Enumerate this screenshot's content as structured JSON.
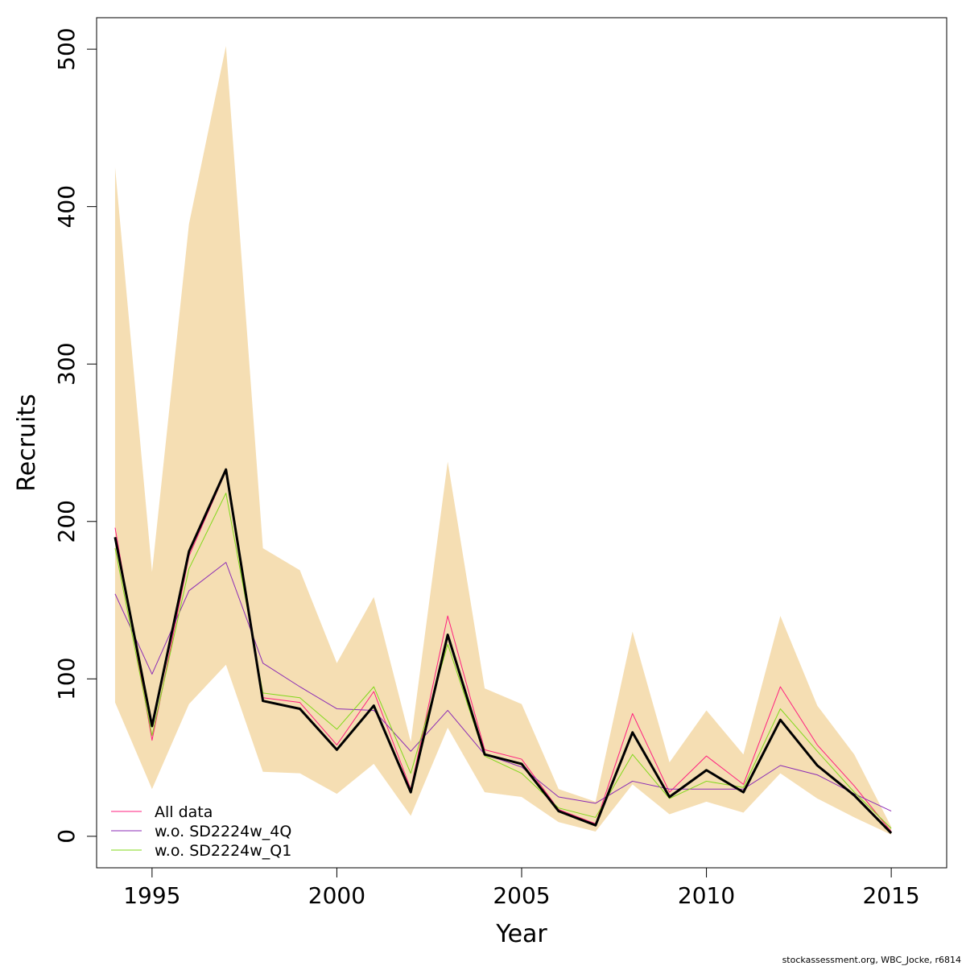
{
  "chart_data": {
    "type": "line",
    "xlabel": "Year",
    "ylabel": "Recruits",
    "xlim": [
      1993.5,
      2016.5
    ],
    "ylim": [
      -20,
      520
    ],
    "x_ticks": [
      1995,
      2000,
      2005,
      2010,
      2015
    ],
    "y_ticks": [
      0,
      100,
      200,
      300,
      400,
      500
    ],
    "grid": false,
    "legend_position": "bottom-left",
    "x": [
      1994,
      1995,
      1996,
      1997,
      1998,
      1999,
      2000,
      2001,
      2002,
      2003,
      2004,
      2005,
      2006,
      2007,
      2008,
      2009,
      2010,
      2011,
      2012,
      2013,
      2014,
      2015
    ],
    "band": {
      "upper": [
        425,
        168,
        389,
        502,
        183,
        169,
        110,
        152,
        60,
        238,
        94,
        84,
        30,
        22,
        130,
        47,
        80,
        52,
        140,
        83,
        52,
        6
      ],
      "lower": [
        85,
        30,
        84,
        109,
        41,
        40,
        27,
        46,
        13,
        69,
        28,
        25,
        9,
        3,
        33,
        14,
        22,
        15,
        40,
        24,
        12,
        1
      ],
      "color": "#F5DEB3"
    },
    "series": [
      {
        "name": "",
        "color": "#000000",
        "values": [
          190,
          70,
          181,
          233,
          86,
          81,
          55,
          83,
          28,
          128,
          52,
          46,
          16,
          7,
          66,
          25,
          42,
          28,
          74,
          45,
          26,
          2
        ]
      },
      {
        "name": "All data",
        "color": "#FF1F7F",
        "values": [
          196,
          61,
          178,
          232,
          88,
          85,
          58,
          92,
          30,
          140,
          55,
          49,
          17,
          8,
          78,
          28,
          51,
          33,
          95,
          58,
          32,
          3
        ]
      },
      {
        "name": "w.o. SD2224w_4Q",
        "color": "#8B2BB5",
        "values": [
          154,
          103,
          156,
          174,
          110,
          95,
          81,
          80,
          54,
          80,
          52,
          44,
          25,
          21,
          35,
          30,
          30,
          30,
          45,
          39,
          27,
          16
        ]
      },
      {
        "name": "w.o. SD2224w_Q1",
        "color": "#80D81A",
        "values": [
          183,
          64,
          170,
          218,
          91,
          88,
          68,
          95,
          40,
          122,
          51,
          40,
          18,
          12,
          52,
          24,
          35,
          31,
          81,
          54,
          28,
          5
        ]
      }
    ]
  },
  "credit": "stockassessment.org, WBC_Jocke, r6814"
}
